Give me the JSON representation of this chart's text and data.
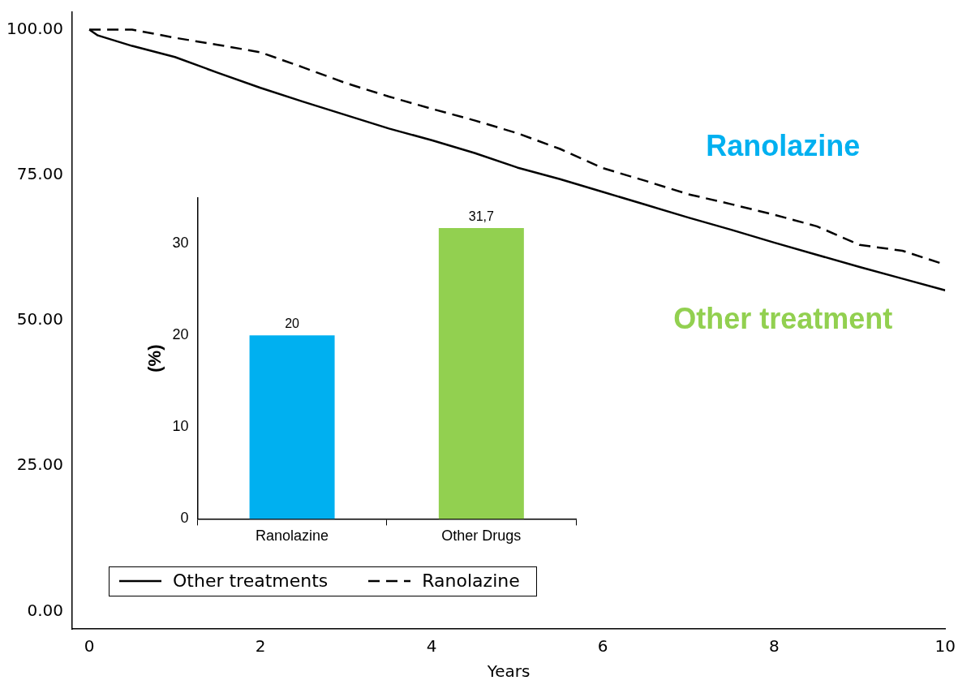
{
  "chart_data": [
    {
      "type": "line",
      "xlabel": "Years",
      "x": [
        0,
        0.1,
        0.5,
        1,
        1.5,
        2,
        2.5,
        3,
        3.5,
        4,
        4.5,
        5,
        5.5,
        6,
        6.5,
        7,
        7.5,
        8,
        8.5,
        9,
        9.5,
        10
      ],
      "series": [
        {
          "name": "Other treatments",
          "color": "#000000",
          "line_style": "solid",
          "values": [
            100,
            99,
            97.2,
            95.3,
            92.6,
            90,
            87.6,
            85.3,
            83,
            81,
            78.8,
            76.3,
            74.3,
            72.1,
            69.9,
            67.7,
            65.6,
            63.4,
            61.3,
            59.2,
            57.2,
            55.2
          ]
        },
        {
          "name": "Ranolazine",
          "color": "#000000",
          "line_style": "dashed",
          "values": [
            100,
            100,
            100,
            98.6,
            97.4,
            96.1,
            93.5,
            90.8,
            88.5,
            86.4,
            84.4,
            82.2,
            79.5,
            76.2,
            74,
            71.7,
            70,
            68.2,
            66.2,
            63,
            62,
            59.6
          ]
        }
      ],
      "xlim": [
        -0.2,
        10
      ],
      "xticks": [
        0,
        2,
        4,
        6,
        8,
        10
      ],
      "ylim": [
        -3,
        103
      ],
      "yticks": [
        {
          "value": 0,
          "label": "0.00"
        },
        {
          "value": 25,
          "label": "25.00"
        },
        {
          "value": 50,
          "label": "50.00"
        },
        {
          "value": 75,
          "label": "75.00"
        },
        {
          "value": 100,
          "label": "100.00"
        }
      ],
      "grid": false,
      "legend": "bottom left",
      "marker": "none",
      "annotations": [
        "Ranolazine",
        "Other treatment"
      ]
    },
    {
      "type": "bar",
      "ylabel": "(%)",
      "categories": [
        "Ranolazine",
        "Other Drugs"
      ],
      "values": [
        20,
        31.7
      ],
      "colors": [
        "#00b0f0",
        "#92d050"
      ],
      "value_labels": [
        "20",
        "31,7"
      ],
      "ylim": [
        0,
        35
      ],
      "yticks": [
        0,
        10,
        20,
        30
      ],
      "grid": false,
      "legend": false
    }
  ]
}
